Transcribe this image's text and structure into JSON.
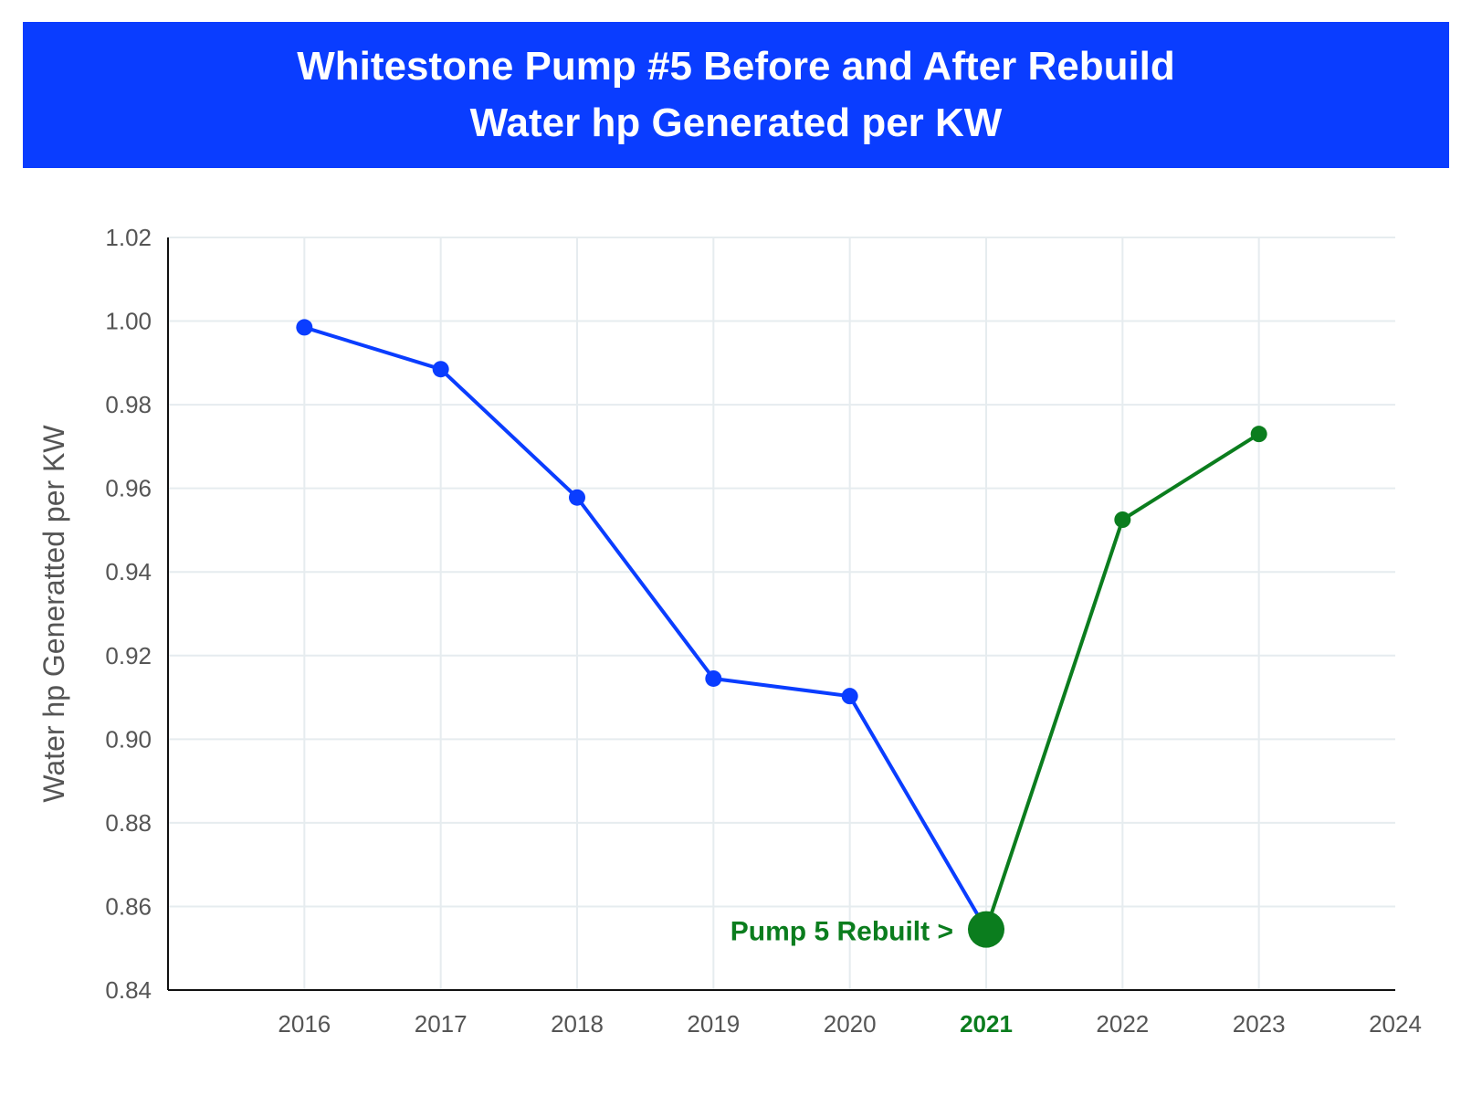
{
  "chart_data": {
    "type": "line",
    "title": "Whitestone Pump #5 Before and After Rebuild",
    "subtitle": "Water hp Generated per KW",
    "xlabel": "",
    "ylabel": "Water hp Generatted per KW",
    "xlim": [
      2015,
      2024
    ],
    "ylim": [
      0.84,
      1.02
    ],
    "x_ticks": [
      "2016",
      "2017",
      "2018",
      "2019",
      "2020",
      "2021",
      "2022",
      "2023",
      "2024"
    ],
    "y_ticks": [
      "0.84",
      "0.86",
      "0.88",
      "0.90",
      "0.92",
      "0.94",
      "0.96",
      "0.98",
      "1.00",
      "1.02"
    ],
    "highlighted_x_tick": "2021",
    "grid": true,
    "series": [
      {
        "segment": "before",
        "color": "#0a3dff",
        "x": [
          2016,
          2017,
          2018,
          2019,
          2020,
          2021
        ],
        "y": [
          0.9985,
          0.9885,
          0.9578,
          0.9145,
          0.9103,
          0.8545
        ]
      },
      {
        "segment": "after",
        "color": "#0b7d1e",
        "x": [
          2021,
          2022,
          2023
        ],
        "y": [
          0.8545,
          0.9525,
          0.973
        ]
      }
    ],
    "annotations": [
      {
        "text": "Pump 5 Rebuilt >",
        "x": 2021,
        "y": 0.8545,
        "color": "#0b7d1e"
      }
    ]
  }
}
